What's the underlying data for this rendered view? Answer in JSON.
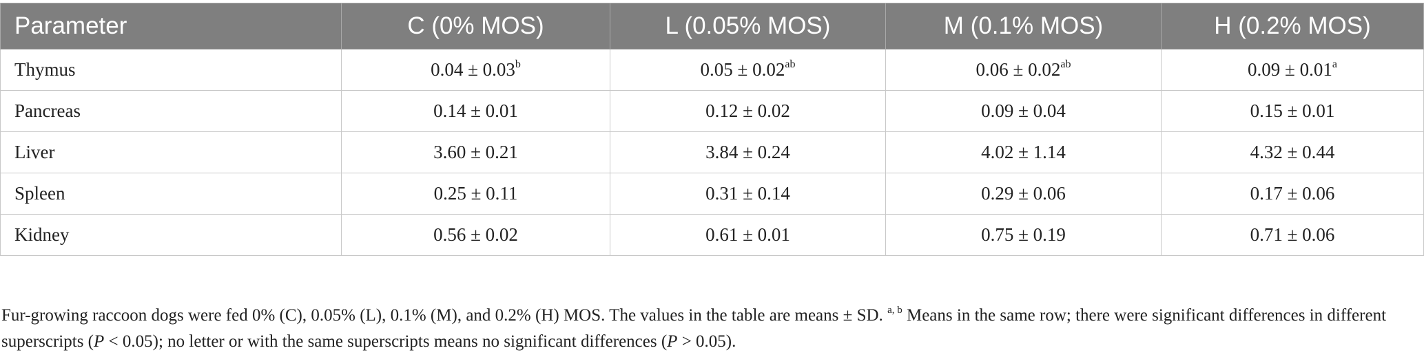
{
  "table": {
    "headers": [
      "Parameter",
      "C (0% MOS)",
      "L (0.05% MOS)",
      "M (0.1% MOS)",
      "H (0.2% MOS)"
    ],
    "rows": [
      {
        "label": "Thymus",
        "cells": [
          {
            "value": "0.04 ± 0.03",
            "sup": "b"
          },
          {
            "value": "0.05 ± 0.02",
            "sup": "ab"
          },
          {
            "value": "0.06 ± 0.02",
            "sup": "ab"
          },
          {
            "value": "0.09 ± 0.01",
            "sup": "a"
          }
        ]
      },
      {
        "label": "Pancreas",
        "cells": [
          {
            "value": "0.14 ± 0.01",
            "sup": ""
          },
          {
            "value": "0.12 ± 0.02",
            "sup": ""
          },
          {
            "value": "0.09 ± 0.04",
            "sup": ""
          },
          {
            "value": "0.15 ± 0.01",
            "sup": ""
          }
        ]
      },
      {
        "label": "Liver",
        "cells": [
          {
            "value": "3.60 ± 0.21",
            "sup": ""
          },
          {
            "value": "3.84 ± 0.24",
            "sup": ""
          },
          {
            "value": "4.02 ± 1.14",
            "sup": ""
          },
          {
            "value": "4.32 ± 0.44",
            "sup": ""
          }
        ]
      },
      {
        "label": "Spleen",
        "cells": [
          {
            "value": "0.25 ± 0.11",
            "sup": ""
          },
          {
            "value": "0.31 ± 0.14",
            "sup": ""
          },
          {
            "value": "0.29 ± 0.06",
            "sup": ""
          },
          {
            "value": "0.17 ± 0.06",
            "sup": ""
          }
        ]
      },
      {
        "label": "Kidney",
        "cells": [
          {
            "value": "0.56 ± 0.02",
            "sup": ""
          },
          {
            "value": "0.61 ± 0.01",
            "sup": ""
          },
          {
            "value": "0.75 ± 0.19",
            "sup": ""
          },
          {
            "value": "0.71 ± 0.06",
            "sup": ""
          }
        ]
      }
    ]
  },
  "footnote": {
    "part1": "Fur-growing raccoon dogs were fed 0% (C), 0.05% (L), 0.1% (M), and 0.2% (H) MOS. The values in the table are means ± SD. ",
    "sup": "a, b",
    "part2": " Means in the same row; there were significant differences in different superscripts (",
    "p1": "P",
    "part3": " < 0.05); no letter or with the same superscripts means no significant differences (",
    "p2": "P",
    "part4": " > 0.05)."
  },
  "colors": {
    "header_bg": "#7f7f7f",
    "header_text": "#ffffff",
    "grid": "#c8c8c8"
  }
}
